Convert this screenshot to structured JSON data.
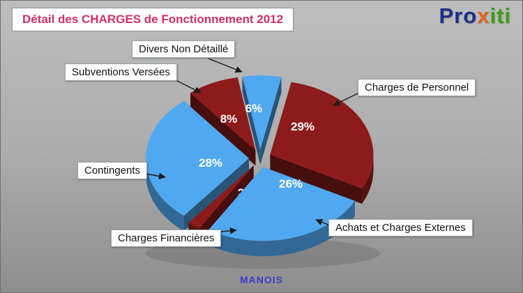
{
  "title": "Détail des CHARGES de Fonctionnement 2012",
  "logo": {
    "text": "Proxiti",
    "parts": [
      {
        "text": "Pro",
        "color": "#1d3189"
      },
      {
        "text": "x",
        "color": "#e4641e"
      },
      {
        "text": "iti",
        "color": "#3da019"
      }
    ]
  },
  "footer": {
    "text": "MANOIS"
  },
  "chart_data": {
    "type": "pie",
    "style": "3d-exploded",
    "title": "Détail des CHARGES de Fonctionnement 2012",
    "unit": "%",
    "slices": [
      {
        "label": "Divers Non Détaillé",
        "value": 6,
        "color": "#4FA8F0"
      },
      {
        "label": "Charges de Personnel",
        "value": 29,
        "color": "#8E1B1B"
      },
      {
        "label": "Achats et Charges Externes",
        "value": 26,
        "color": "#4FA8F0"
      },
      {
        "label": "Charges Financières",
        "value": 2,
        "color": "#8E1B1B"
      },
      {
        "label": "Contingents",
        "value": 28,
        "color": "#4FA8F0"
      },
      {
        "label": "Subventions Versées",
        "value": 8,
        "color": "#8E1B1B"
      }
    ],
    "palette": {
      "blue": "#4FA8F0",
      "dark_red": "#8E1B1B"
    },
    "legend_position": "callout-labels",
    "source_label": "MANOIS"
  }
}
